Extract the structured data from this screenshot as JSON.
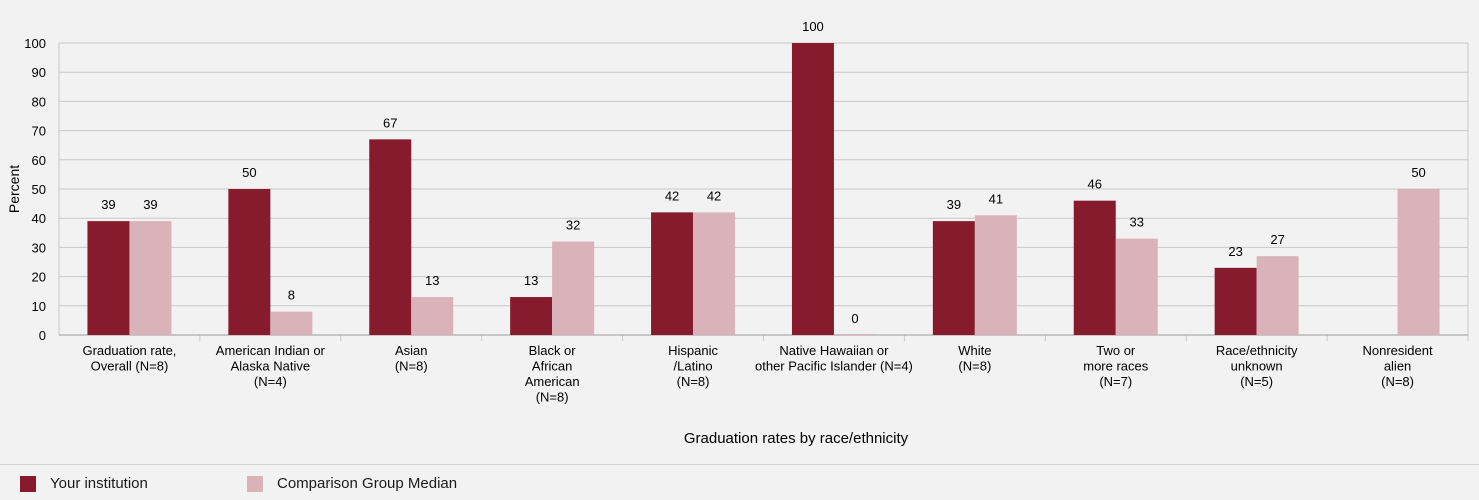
{
  "chart_data": {
    "type": "bar",
    "title": "",
    "xlabel": "Graduation rates by race/ethnicity",
    "ylabel": "Percent",
    "ylim": [
      0,
      100
    ],
    "yticks": [
      0,
      10,
      20,
      30,
      40,
      50,
      60,
      70,
      80,
      90,
      100
    ],
    "categories": [
      [
        "Graduation rate,",
        "Overall (N=8)"
      ],
      [
        "American Indian or",
        "Alaska Native",
        "(N=4)"
      ],
      [
        "Asian",
        "(N=8)"
      ],
      [
        "Black or",
        "African",
        "American",
        "(N=8)"
      ],
      [
        "Hispanic",
        "/Latino",
        "(N=8)"
      ],
      [
        "Native Hawaiian or",
        "other Pacific Islander (N=4)"
      ],
      [
        "White",
        "(N=8)"
      ],
      [
        "Two or",
        "more races",
        "(N=7)"
      ],
      [
        "Race/ethnicity",
        "unknown",
        "(N=5)"
      ],
      [
        "Nonresident",
        "alien",
        "(N=8)"
      ]
    ],
    "series": [
      {
        "name": "Your institution",
        "color": "#861b2e",
        "values": [
          39,
          50,
          67,
          13,
          42,
          100,
          39,
          46,
          23,
          null
        ]
      },
      {
        "name": "Comparison Group Median",
        "color": "#d9b3b9",
        "values": [
          39,
          8,
          13,
          32,
          42,
          0,
          41,
          33,
          27,
          50
        ]
      }
    ],
    "grid": true,
    "legend_position": "bottom-left"
  }
}
